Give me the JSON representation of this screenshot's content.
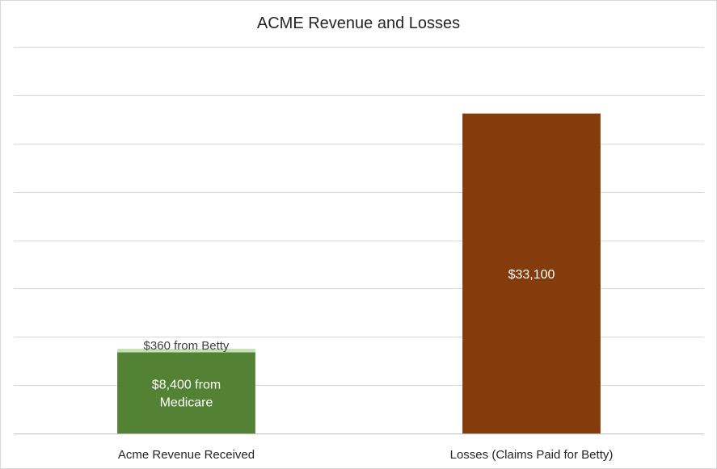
{
  "chart_data": {
    "type": "bar",
    "stacked": true,
    "title": "ACME Revenue and Losses",
    "categories": [
      "Acme Revenue Received",
      "Losses (Claims Paid for Betty)"
    ],
    "series": [
      {
        "values": [
          8400,
          33100
        ],
        "colors": [
          "#548235",
          "#843c0c"
        ],
        "data_labels": [
          "$8,400  from Medicare",
          "$33,100"
        ]
      },
      {
        "values": [
          360,
          0
        ],
        "colors": [
          "#c5e0b4",
          "#c5e0b4"
        ],
        "data_labels": [
          "$360  from Betty",
          ""
        ]
      }
    ],
    "ylim": [
      0,
      40000
    ],
    "y_tick_step": 5000,
    "y_tick_labels_shown": false,
    "grid": true,
    "legend": "none"
  }
}
